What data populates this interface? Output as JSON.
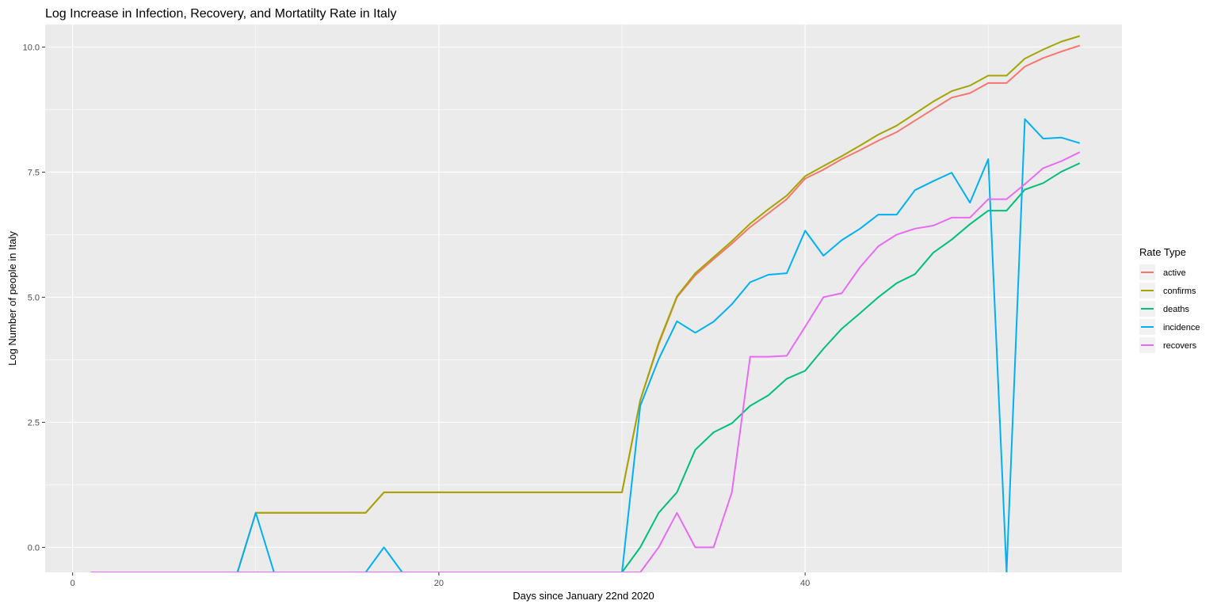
{
  "chart_data": {
    "type": "line",
    "title": "Log Increase in Infection, Recovery, and Mortatilty Rate in Italy",
    "xlabel": "Days since January 22nd 2020",
    "ylabel": "Log Number of people in Italy",
    "xlim": [
      -1.5,
      57.3
    ],
    "ylim": [
      -0.5,
      10.45
    ],
    "x_ticks": [
      0,
      20,
      40
    ],
    "x_tick_labels": [
      "0",
      "20",
      "40"
    ],
    "y_ticks": [
      0,
      2.5,
      5,
      7.5,
      10
    ],
    "y_tick_labels": [
      "0.0",
      "2.5",
      "5.0",
      "7.5",
      "10.0"
    ],
    "grid": true,
    "legend_title": "Rate Type",
    "legend_position": "right",
    "series": [
      {
        "name": "active",
        "color": "#F8766D",
        "points": [
          [
            1,
            -0.5
          ],
          [
            9,
            -0.5
          ],
          [
            10,
            0.69
          ],
          [
            16,
            0.69
          ],
          [
            17,
            1.1
          ],
          [
            30,
            1.1
          ],
          [
            31,
            2.94
          ],
          [
            32,
            4.06
          ],
          [
            33,
            5.0
          ],
          [
            34,
            5.44
          ],
          [
            35,
            5.76
          ],
          [
            36,
            6.07
          ],
          [
            37,
            6.4
          ],
          [
            38,
            6.68
          ],
          [
            39,
            6.96
          ],
          [
            40,
            7.37
          ],
          [
            41,
            7.55
          ],
          [
            42,
            7.76
          ],
          [
            43,
            7.94
          ],
          [
            44,
            8.13
          ],
          [
            45,
            8.3
          ],
          [
            46,
            8.53
          ],
          [
            47,
            8.76
          ],
          [
            48,
            8.99
          ],
          [
            49,
            9.08
          ],
          [
            50,
            9.28
          ],
          [
            51,
            9.28
          ],
          [
            52,
            9.61
          ],
          [
            53,
            9.78
          ],
          [
            54,
            9.91
          ],
          [
            55,
            10.03
          ]
        ]
      },
      {
        "name": "confirms",
        "color": "#A3A500",
        "points": [
          [
            1,
            -0.5
          ],
          [
            9,
            -0.5
          ],
          [
            10,
            0.69
          ],
          [
            16,
            0.69
          ],
          [
            17,
            1.1
          ],
          [
            30,
            1.1
          ],
          [
            31,
            2.94
          ],
          [
            32,
            4.09
          ],
          [
            33,
            5.02
          ],
          [
            34,
            5.48
          ],
          [
            35,
            5.8
          ],
          [
            36,
            6.12
          ],
          [
            37,
            6.47
          ],
          [
            38,
            6.76
          ],
          [
            39,
            7.03
          ],
          [
            40,
            7.42
          ],
          [
            41,
            7.62
          ],
          [
            42,
            7.82
          ],
          [
            43,
            8.03
          ],
          [
            44,
            8.25
          ],
          [
            45,
            8.43
          ],
          [
            46,
            8.67
          ],
          [
            47,
            8.91
          ],
          [
            48,
            9.12
          ],
          [
            49,
            9.23
          ],
          [
            50,
            9.43
          ],
          [
            51,
            9.43
          ],
          [
            52,
            9.77
          ],
          [
            53,
            9.95
          ],
          [
            54,
            10.11
          ],
          [
            55,
            10.22
          ]
        ]
      },
      {
        "name": "deaths",
        "color": "#00BF7D",
        "points": [
          [
            1,
            -0.5
          ],
          [
            30,
            -0.5
          ],
          [
            31,
            0.0
          ],
          [
            32,
            0.69
          ],
          [
            33,
            1.1
          ],
          [
            34,
            1.95
          ],
          [
            35,
            2.3
          ],
          [
            36,
            2.48
          ],
          [
            37,
            2.83
          ],
          [
            38,
            3.04
          ],
          [
            39,
            3.37
          ],
          [
            40,
            3.53
          ],
          [
            41,
            3.97
          ],
          [
            42,
            4.37
          ],
          [
            43,
            4.68
          ],
          [
            44,
            5.0
          ],
          [
            45,
            5.28
          ],
          [
            46,
            5.46
          ],
          [
            47,
            5.89
          ],
          [
            48,
            6.15
          ],
          [
            49,
            6.46
          ],
          [
            50,
            6.73
          ],
          [
            51,
            6.73
          ],
          [
            52,
            7.15
          ],
          [
            53,
            7.28
          ],
          [
            54,
            7.51
          ],
          [
            55,
            7.68
          ]
        ]
      },
      {
        "name": "incidence",
        "color": "#00B0F6",
        "points": [
          [
            1,
            -0.5
          ],
          [
            9,
            -0.5
          ],
          [
            10,
            0.69
          ],
          [
            11,
            -0.5
          ],
          [
            16,
            -0.5
          ],
          [
            17,
            0.0
          ],
          [
            18,
            -0.5
          ],
          [
            30,
            -0.5
          ],
          [
            31,
            2.83
          ],
          [
            32,
            3.76
          ],
          [
            33,
            4.52
          ],
          [
            34,
            4.29
          ],
          [
            35,
            4.51
          ],
          [
            36,
            4.86
          ],
          [
            37,
            5.3
          ],
          [
            38,
            5.45
          ],
          [
            39,
            5.48
          ],
          [
            40,
            6.33
          ],
          [
            41,
            5.83
          ],
          [
            42,
            6.14
          ],
          [
            43,
            6.37
          ],
          [
            44,
            6.65
          ],
          [
            45,
            6.65
          ],
          [
            46,
            7.14
          ],
          [
            47,
            7.32
          ],
          [
            48,
            7.49
          ],
          [
            49,
            6.89
          ],
          [
            50,
            7.76
          ],
          [
            51,
            -0.5
          ],
          [
            52,
            8.56
          ],
          [
            53,
            8.17
          ],
          [
            54,
            8.19
          ],
          [
            55,
            8.08
          ]
        ]
      },
      {
        "name": "recovers",
        "color": "#E76BF3",
        "points": [
          [
            1,
            -0.5
          ],
          [
            31,
            -0.5
          ],
          [
            32,
            0.0
          ],
          [
            33,
            0.69
          ],
          [
            34,
            0.0
          ],
          [
            35,
            0.0
          ],
          [
            36,
            1.1
          ],
          [
            37,
            3.81
          ],
          [
            38,
            3.81
          ],
          [
            39,
            3.83
          ],
          [
            40,
            4.41
          ],
          [
            41,
            5.0
          ],
          [
            42,
            5.08
          ],
          [
            43,
            5.6
          ],
          [
            44,
            6.02
          ],
          [
            45,
            6.25
          ],
          [
            46,
            6.37
          ],
          [
            47,
            6.43
          ],
          [
            48,
            6.59
          ],
          [
            49,
            6.59
          ],
          [
            50,
            6.96
          ],
          [
            51,
            6.96
          ],
          [
            52,
            7.26
          ],
          [
            53,
            7.58
          ],
          [
            54,
            7.72
          ],
          [
            55,
            7.9
          ]
        ]
      }
    ]
  }
}
